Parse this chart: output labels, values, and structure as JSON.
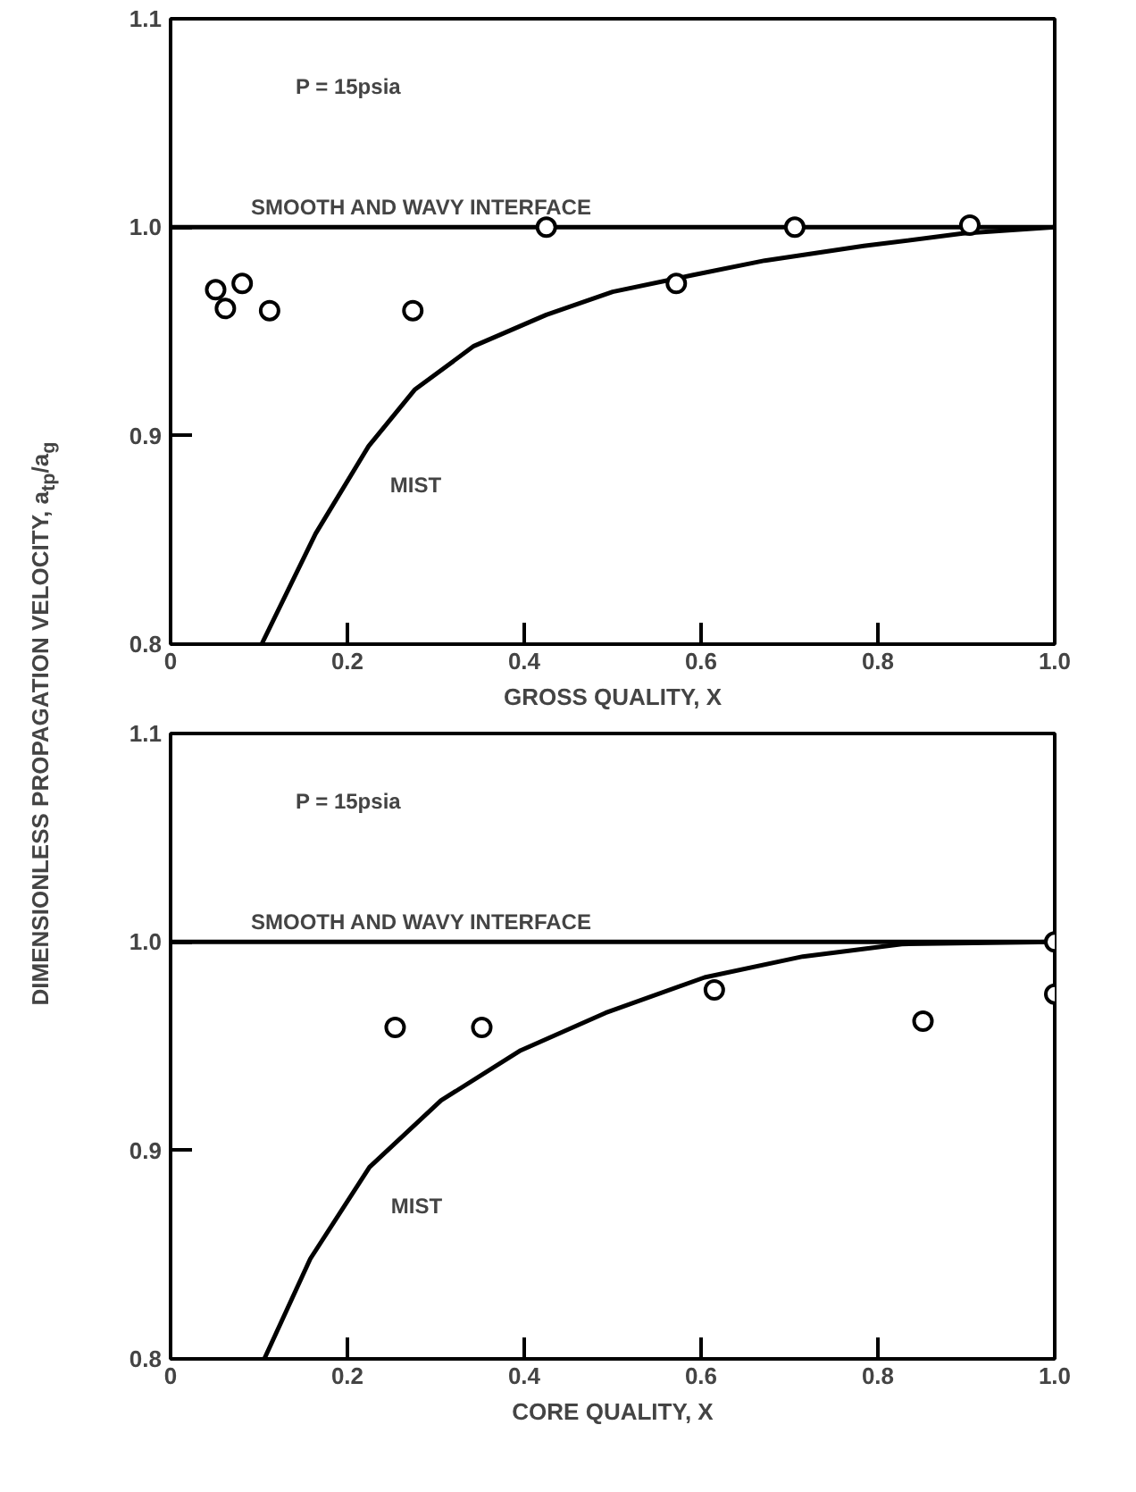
{
  "chart_data": [
    {
      "type": "scatter",
      "xlabel": "GROSS QUALITY, X",
      "ylabel": "DIMENSIONLESS PROPAGATION VELOCITY, a$_{tp}$/a$_{g}$",
      "xlim": [
        0,
        1.0
      ],
      "ylim": [
        0.8,
        1.1
      ],
      "xticks": [
        0,
        0.2,
        0.4,
        0.6,
        0.8,
        {
          "value": 1.0,
          "label": "1.0"
        }
      ],
      "yticks": [
        0.8,
        0.9,
        {
          "value": 1.0,
          "label": "1.0"
        },
        1.1
      ],
      "grid": false,
      "legend": false,
      "marker": "circle",
      "annotations": [
        "P = 15psia"
      ],
      "series": [
        {
          "type": "line",
          "name": "SMOOTH AND WAVY INTERFACE",
          "marker": "none",
          "color": "#000000",
          "x": [
            0,
            1.0
          ],
          "values": [
            1.0,
            1.0
          ]
        },
        {
          "type": "line",
          "name": "MIST",
          "marker": "none",
          "color": "#000000",
          "x": [
            0.103,
            0.164,
            0.224,
            0.276,
            0.343,
            0.425,
            0.5,
            0.59,
            0.672,
            0.784,
            0.896,
            1.0
          ],
          "values": [
            0.8,
            0.853,
            0.895,
            0.922,
            0.943,
            0.958,
            0.969,
            0.977,
            0.984,
            0.991,
            0.997,
            1.0
          ]
        },
        {
          "color": "#000000",
          "x": [
            0.051,
            0.062,
            0.081,
            0.112,
            0.274,
            0.425,
            0.572,
            0.706,
            0.904
          ],
          "values": [
            0.97,
            0.961,
            0.973,
            0.96,
            0.96,
            1.0,
            0.973,
            1.0,
            1.001
          ]
        }
      ]
    },
    {
      "type": "scatter",
      "xlabel": "CORE QUALITY, X",
      "xlim": [
        0,
        1.0
      ],
      "ylim": [
        0.8,
        1.1
      ],
      "xticks": [
        0,
        0.2,
        0.4,
        0.6,
        0.8,
        {
          "value": 1.0,
          "label": "1.0"
        }
      ],
      "yticks": [
        0.8,
        0.9,
        {
          "value": 1.0,
          "label": "1.0"
        },
        1.1
      ],
      "grid": false,
      "legend": false,
      "marker": "circle",
      "annotations": [
        "P = 15psia"
      ],
      "series": [
        {
          "type": "line",
          "name": "SMOOTH AND WAVY INTERFACE",
          "marker": "none",
          "color": "#000000",
          "x": [
            0,
            1.0
          ],
          "values": [
            1.0,
            1.0
          ]
        },
        {
          "type": "line",
          "name": "MIST",
          "marker": "none",
          "color": "#000000",
          "x": [
            0.106,
            0.158,
            0.225,
            0.306,
            0.396,
            0.492,
            0.604,
            0.715,
            0.827,
            1.0
          ],
          "values": [
            0.8,
            0.848,
            0.892,
            0.924,
            0.948,
            0.966,
            0.983,
            0.993,
            0.999,
            1.0
          ]
        },
        {
          "color": "#000000",
          "x": [
            0.254,
            0.352,
            0.615,
            0.851,
            1.0,
            1.0
          ],
          "values": [
            0.959,
            0.959,
            0.977,
            0.962,
            1.0,
            0.975
          ]
        }
      ]
    }
  ]
}
